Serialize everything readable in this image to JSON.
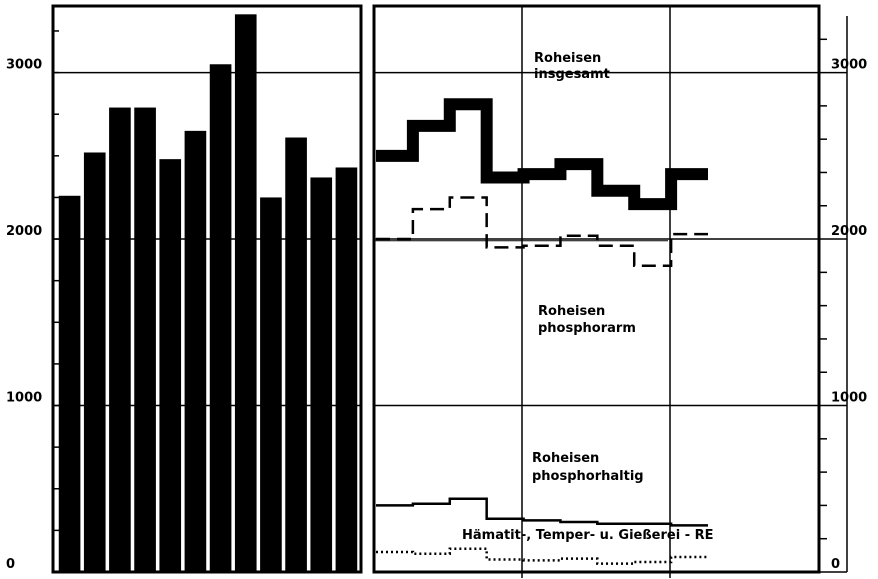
{
  "chart_data": [
    {
      "type": "bar",
      "title": "",
      "xlabel": "",
      "ylabel": "",
      "ylim": [
        0,
        3400
      ],
      "yticks": [
        0,
        1000,
        2000,
        3000
      ],
      "grid": true,
      "color": "#000000",
      "values": [
        2260,
        2520,
        2790,
        2790,
        2480,
        2650,
        3050,
        3350,
        2250,
        2610,
        2370,
        2430
      ]
    },
    {
      "type": "line",
      "title": "",
      "xlabel": "",
      "ylabel": "",
      "ylim": [
        0,
        3400
      ],
      "yticks": [
        0,
        1000,
        2000,
        3000
      ],
      "step": true,
      "grid": true,
      "series": [
        {
          "name": "Roheisen insgesamt",
          "style": "thick",
          "values": [
            2500,
            2680,
            2810,
            2370,
            2390,
            2450,
            2290,
            2210,
            2390
          ]
        },
        {
          "name": "Roheisen phosphorarm",
          "style": "dashed",
          "values": [
            2000,
            2180,
            2250,
            1950,
            1960,
            2020,
            1960,
            1840,
            2030
          ]
        },
        {
          "name": "Roheisen phosphorhaltig",
          "style": "solid",
          "values": [
            400,
            410,
            440,
            320,
            310,
            300,
            290,
            290,
            280
          ]
        },
        {
          "name": "Hämatit-, Temper- u. Gießerei - RE",
          "style": "dotted",
          "values": [
            120,
            110,
            140,
            75,
            70,
            80,
            50,
            60,
            90
          ]
        }
      ]
    }
  ],
  "labels": {
    "left_ticks": [
      "0",
      "1000",
      "2000",
      "3000"
    ],
    "right_ticks": [
      "0",
      "1000",
      "2000",
      "3000"
    ],
    "insgesamt_1": "Roheisen",
    "insgesamt_2": "insgesamt",
    "phosphorarm_1": "Roheisen",
    "phosphorarm_2": "phosphorarm",
    "phosphorhaltig_1": "Roheisen",
    "phosphorhaltig_2": "phosphorhaltig",
    "haematit": "Hämatit-, Temper- u. Gießerei - RE"
  }
}
